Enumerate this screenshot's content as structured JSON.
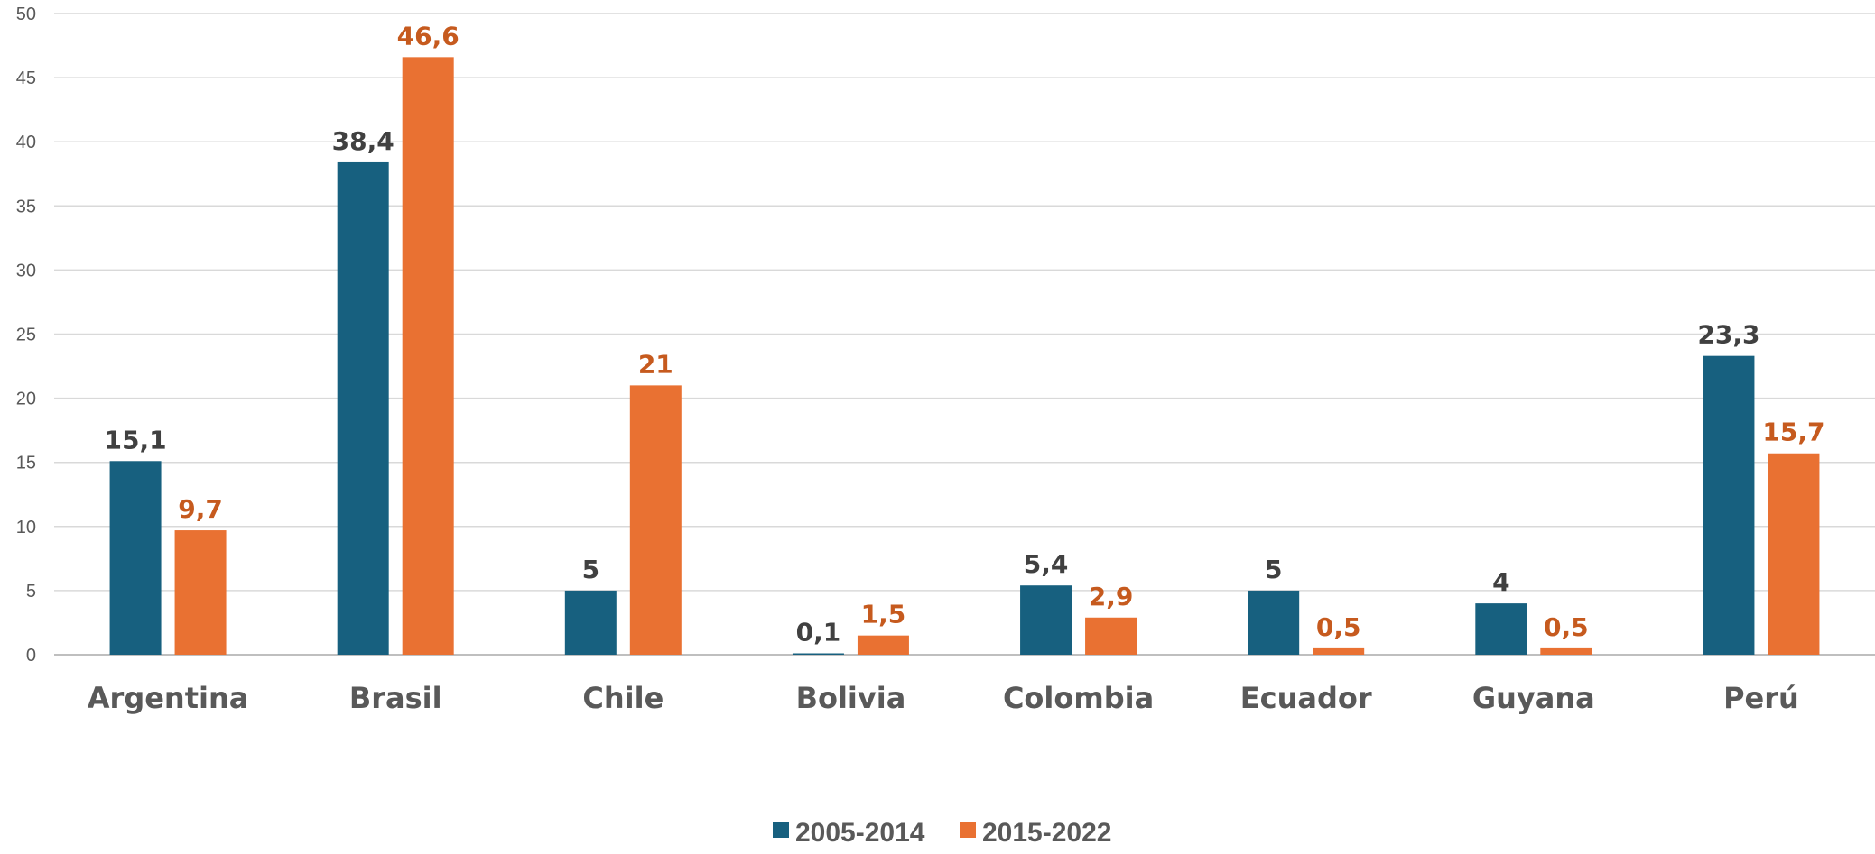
{
  "chart_data": {
    "type": "bar",
    "title": "",
    "xlabel": "",
    "ylabel": "",
    "ylim": [
      0,
      50
    ],
    "yticks": [
      0,
      5,
      10,
      15,
      20,
      25,
      30,
      35,
      40,
      45,
      50
    ],
    "categories": [
      "Argentina",
      "Brasil",
      "Chile",
      "Bolivia",
      "Colombia",
      "Ecuador",
      "Guyana",
      "Perú"
    ],
    "series": [
      {
        "name": "2005-2014",
        "color": "#17607F",
        "values": [
          15.1,
          38.4,
          5,
          0.1,
          5.4,
          5,
          4,
          23.3
        ],
        "labels": [
          "15,1",
          "38,4",
          "5",
          "0,1",
          "5,4",
          "5",
          "4",
          "23,3"
        ],
        "label_color": "#404040"
      },
      {
        "name": "2015-2022",
        "color": "#E97132",
        "values": [
          9.7,
          46.6,
          21,
          1.5,
          2.9,
          0.5,
          0.5,
          15.7
        ],
        "labels": [
          "9,7",
          "46,6",
          "21",
          "1,5",
          "2,9",
          "0,5",
          "0,5",
          "15,7"
        ],
        "label_color": "#C65A1E"
      }
    ],
    "grid": true,
    "legend": "bottom-center"
  }
}
